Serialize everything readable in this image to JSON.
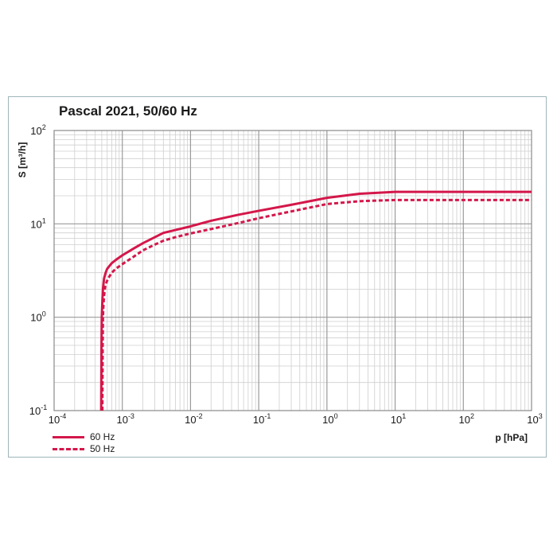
{
  "chart_data": {
    "type": "line",
    "title": "Pascal 2021, 50/60 Hz",
    "xlabel": "p [hPa]",
    "ylabel": "S [m³/h]",
    "xscale": "log",
    "yscale": "log",
    "xlim": [
      0.0001,
      1000
    ],
    "ylim": [
      0.1,
      100
    ],
    "grid": true,
    "legend_position": "bottom-left",
    "x_ticks": [
      {
        "base": "10",
        "exp": "-4"
      },
      {
        "base": "10",
        "exp": "-3"
      },
      {
        "base": "10",
        "exp": "-2"
      },
      {
        "base": "10",
        "exp": "-1"
      },
      {
        "base": "10",
        "exp": "0"
      },
      {
        "base": "10",
        "exp": "1"
      },
      {
        "base": "10",
        "exp": "2"
      },
      {
        "base": "10",
        "exp": "3"
      }
    ],
    "y_ticks": [
      {
        "base": "10",
        "exp": "-1"
      },
      {
        "base": "10",
        "exp": "0"
      },
      {
        "base": "10",
        "exp": "1"
      },
      {
        "base": "10",
        "exp": "2"
      }
    ],
    "series": [
      {
        "name": "60 Hz",
        "color": "#d4174a",
        "style": "solid",
        "x": [
          0.00049,
          0.000495,
          0.0005,
          0.00051,
          0.00052,
          0.00054,
          0.00057,
          0.0006,
          0.0007,
          0.0008,
          0.001,
          0.0015,
          0.002,
          0.003,
          0.004,
          0.006,
          0.01,
          0.02,
          0.05,
          0.1,
          0.3,
          1,
          3,
          10,
          100,
          1000
        ],
        "y": [
          0.1,
          0.5,
          1.0,
          1.5,
          2.0,
          2.6,
          3.0,
          3.3,
          3.8,
          4.1,
          4.6,
          5.5,
          6.2,
          7.2,
          8.0,
          8.6,
          9.4,
          10.8,
          12.5,
          13.8,
          16.0,
          19.0,
          21.0,
          22.0,
          22.0,
          22.0
        ]
      },
      {
        "name": "50 Hz",
        "color": "#d4174a",
        "style": "dashed",
        "x": [
          0.00051,
          0.000515,
          0.00052,
          0.00053,
          0.00054,
          0.00056,
          0.00059,
          0.00062,
          0.0007,
          0.0008,
          0.001,
          0.0015,
          0.002,
          0.003,
          0.004,
          0.006,
          0.01,
          0.02,
          0.05,
          0.1,
          0.3,
          1,
          3,
          10,
          100,
          1000
        ],
        "y": [
          0.1,
          0.5,
          1.0,
          1.4,
          1.7,
          2.1,
          2.4,
          2.6,
          3.0,
          3.3,
          3.7,
          4.5,
          5.2,
          6.0,
          6.6,
          7.2,
          7.9,
          8.8,
          10.2,
          11.5,
          13.6,
          16.3,
          17.5,
          18.0,
          18.0,
          18.0
        ]
      }
    ]
  }
}
